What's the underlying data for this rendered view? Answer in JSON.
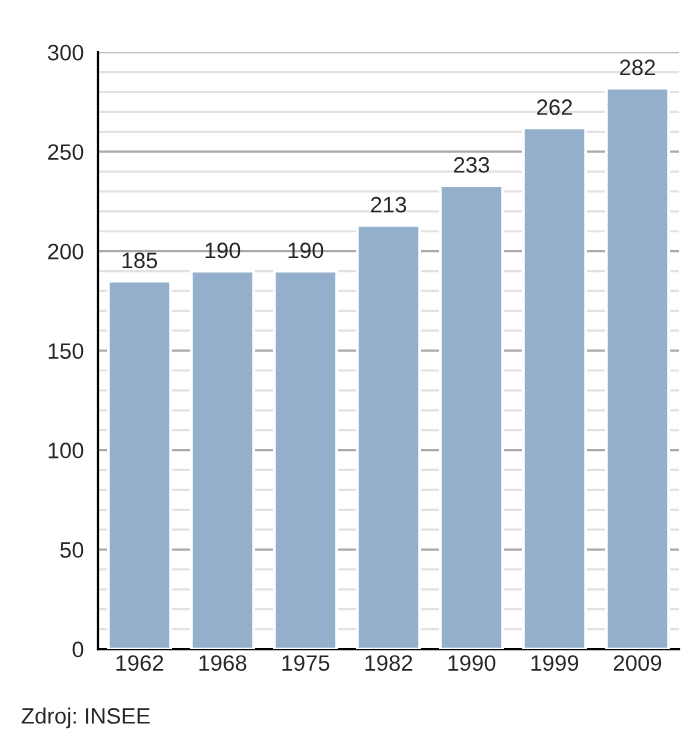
{
  "chart_data": {
    "type": "bar",
    "categories": [
      "1962",
      "1968",
      "1975",
      "1982",
      "1990",
      "1999",
      "2009"
    ],
    "values": [
      185,
      190,
      190,
      213,
      233,
      262,
      282
    ],
    "color": "#94afcb",
    "data_labels": true,
    "ylim": [
      0,
      300
    ],
    "yticks": [
      0,
      {
        "value": 10,
        "label": null
      },
      {
        "value": 20,
        "label": null
      },
      {
        "value": 30,
        "label": null
      },
      {
        "value": 40,
        "label": null
      },
      50,
      {
        "value": 60,
        "label": null
      },
      {
        "value": 70,
        "label": null
      },
      {
        "value": 80,
        "label": null
      },
      {
        "value": 90,
        "label": null
      },
      100,
      {
        "value": 110,
        "label": null
      },
      {
        "value": 120,
        "label": null
      },
      {
        "value": 130,
        "label": null
      },
      {
        "value": 140,
        "label": null
      },
      150,
      {
        "value": 160,
        "label": null
      },
      {
        "value": 170,
        "label": null
      },
      {
        "value": 180,
        "label": null
      },
      {
        "value": 190,
        "label": null
      },
      200,
      {
        "value": 210,
        "label": null
      },
      {
        "value": 220,
        "label": null
      },
      {
        "value": 230,
        "label": null
      },
      {
        "value": 240,
        "label": null
      },
      250,
      {
        "value": 260,
        "label": null
      },
      {
        "value": 270,
        "label": null
      },
      {
        "value": 280,
        "label": null
      },
      {
        "value": 290,
        "label": null
      },
      300
    ],
    "grid": "y",
    "annotations": [
      "Zdroj: INSEE"
    ]
  }
}
